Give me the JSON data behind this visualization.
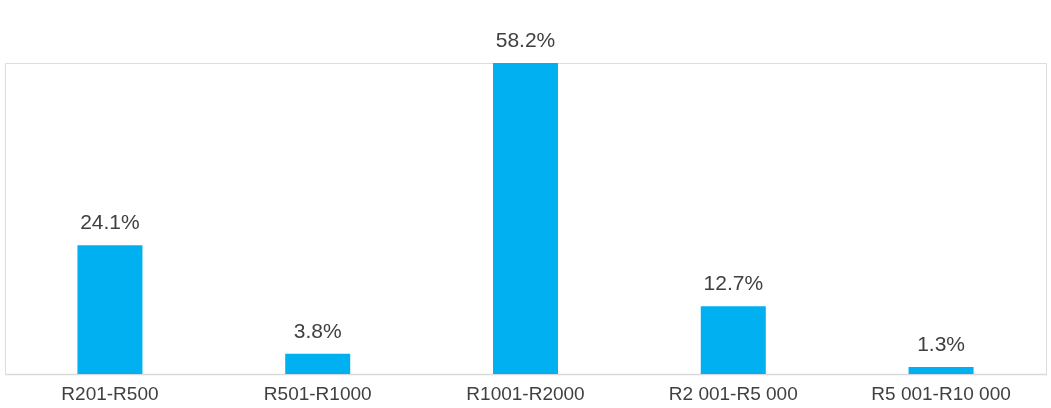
{
  "chart_data": {
    "type": "bar",
    "categories": [
      "R201-R500",
      "R501-R1000",
      "R1001-R2000",
      "R2 001-R5 000",
      "R5 001-R10 000"
    ],
    "values": [
      24.1,
      3.8,
      58.2,
      12.7,
      1.3
    ],
    "value_labels": [
      "24.1%",
      "3.8%",
      "58.2%",
      "12.7%",
      "1.3%"
    ],
    "color": "#00b0f0",
    "grid": false
  }
}
